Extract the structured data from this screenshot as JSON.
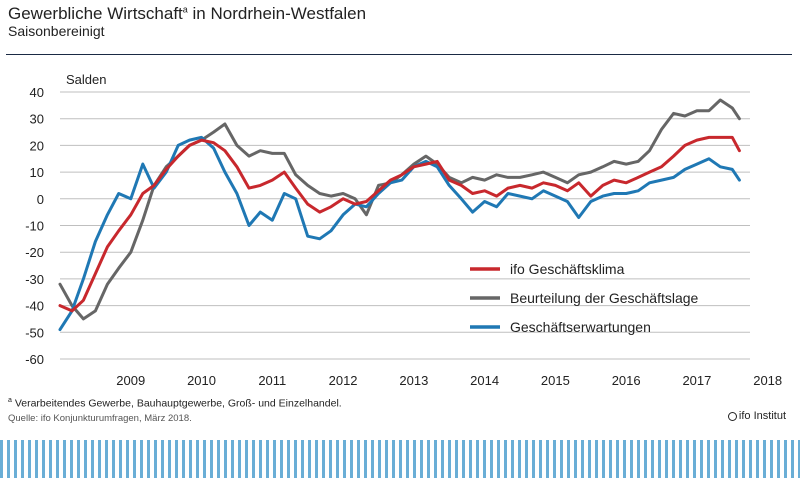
{
  "header": {
    "title": "Gewerbliche Wirtschaft",
    "title_sup": "a",
    "title_rest": " in Nordrhein-Westfalen",
    "subtitle": "Saisonbereinigt"
  },
  "footer": {
    "footnote_sup": "a",
    "footnote": " Verarbeitendes Gewerbe, Bauhauptgewerbe, Groß- und Einzelhandel.",
    "source": "Quelle: ifo Konjunkturumfragen, März 2018.",
    "brand": "ifo Institut"
  },
  "chart_data": {
    "type": "line",
    "ylabel": "Salden",
    "ylim": [
      -60,
      40
    ],
    "yticks": [
      40,
      30,
      20,
      10,
      0,
      -10,
      -20,
      -30,
      -40,
      -50,
      -60
    ],
    "xlim": [
      2008.5,
      2018.25
    ],
    "xticks": [
      "2009",
      "2010",
      "2011",
      "2012",
      "2013",
      "2014",
      "2015",
      "2016",
      "2017",
      "2018"
    ],
    "grid": true,
    "legend_position": "right",
    "colors": {
      "klima": "#c8282d",
      "lage": "#666666",
      "erwartungen": "#1f78b4"
    },
    "series": [
      {
        "name": "ifo Geschäftsklima",
        "key": "klima",
        "x": [
          2008.5,
          2008.67,
          2008.83,
          2009.0,
          2009.17,
          2009.33,
          2009.5,
          2009.67,
          2009.83,
          2010.0,
          2010.17,
          2010.33,
          2010.5,
          2010.67,
          2010.83,
          2011.0,
          2011.17,
          2011.33,
          2011.5,
          2011.67,
          2011.83,
          2012.0,
          2012.17,
          2012.33,
          2012.5,
          2012.67,
          2012.83,
          2013.0,
          2013.17,
          2013.33,
          2013.5,
          2013.67,
          2013.83,
          2014.0,
          2014.17,
          2014.33,
          2014.5,
          2014.67,
          2014.83,
          2015.0,
          2015.17,
          2015.33,
          2015.5,
          2015.67,
          2015.83,
          2016.0,
          2016.17,
          2016.33,
          2016.5,
          2016.67,
          2016.83,
          2017.0,
          2017.17,
          2017.33,
          2017.5,
          2017.67,
          2017.83,
          2018.0,
          2018.1
        ],
        "values": [
          -40,
          -42,
          -38,
          -28,
          -18,
          -12,
          -6,
          2,
          5,
          11,
          16,
          20,
          22,
          21,
          18,
          12,
          4,
          5,
          7,
          10,
          4,
          -2,
          -5,
          -3,
          0,
          -2,
          -1,
          3,
          7,
          9,
          12,
          13,
          14,
          7,
          5,
          2,
          3,
          1,
          4,
          5,
          4,
          6,
          5,
          3,
          6,
          1,
          5,
          7,
          6,
          8,
          10,
          12,
          16,
          20,
          22,
          23,
          23,
          23,
          18
        ]
      },
      {
        "name": "Beurteilung der Geschäftslage",
        "key": "lage",
        "x": [
          2008.5,
          2008.67,
          2008.83,
          2009.0,
          2009.17,
          2009.33,
          2009.5,
          2009.67,
          2009.83,
          2010.0,
          2010.17,
          2010.33,
          2010.5,
          2010.67,
          2010.83,
          2011.0,
          2011.17,
          2011.33,
          2011.5,
          2011.67,
          2011.83,
          2012.0,
          2012.17,
          2012.33,
          2012.5,
          2012.67,
          2012.83,
          2013.0,
          2013.17,
          2013.33,
          2013.5,
          2013.67,
          2013.83,
          2014.0,
          2014.17,
          2014.33,
          2014.5,
          2014.67,
          2014.83,
          2015.0,
          2015.17,
          2015.33,
          2015.5,
          2015.67,
          2015.83,
          2016.0,
          2016.17,
          2016.33,
          2016.5,
          2016.67,
          2016.83,
          2017.0,
          2017.17,
          2017.33,
          2017.5,
          2017.67,
          2017.83,
          2018.0,
          2018.1
        ],
        "values": [
          -32,
          -40,
          -45,
          -42,
          -32,
          -26,
          -20,
          -8,
          5,
          12,
          16,
          20,
          22,
          25,
          28,
          20,
          16,
          18,
          17,
          17,
          9,
          5,
          2,
          1,
          2,
          0,
          -6,
          5,
          6,
          9,
          13,
          16,
          13,
          8,
          6,
          8,
          7,
          9,
          8,
          8,
          9,
          10,
          8,
          6,
          9,
          10,
          12,
          14,
          13,
          14,
          18,
          26,
          32,
          31,
          33,
          33,
          37,
          34,
          30
        ]
      },
      {
        "name": "Geschäftserwartungen",
        "key": "erwartungen",
        "x": [
          2008.5,
          2008.67,
          2008.83,
          2009.0,
          2009.17,
          2009.33,
          2009.5,
          2009.67,
          2009.83,
          2010.0,
          2010.17,
          2010.33,
          2010.5,
          2010.67,
          2010.83,
          2011.0,
          2011.17,
          2011.33,
          2011.5,
          2011.67,
          2011.83,
          2012.0,
          2012.17,
          2012.33,
          2012.5,
          2012.67,
          2012.83,
          2013.0,
          2013.17,
          2013.33,
          2013.5,
          2013.67,
          2013.83,
          2014.0,
          2014.17,
          2014.33,
          2014.5,
          2014.67,
          2014.83,
          2015.0,
          2015.17,
          2015.33,
          2015.5,
          2015.67,
          2015.83,
          2016.0,
          2016.17,
          2016.33,
          2016.5,
          2016.67,
          2016.83,
          2017.0,
          2017.17,
          2017.33,
          2017.5,
          2017.67,
          2017.83,
          2018.0,
          2018.1
        ],
        "values": [
          -49,
          -42,
          -30,
          -16,
          -6,
          2,
          0,
          13,
          4,
          10,
          20,
          22,
          23,
          19,
          10,
          2,
          -10,
          -5,
          -8,
          2,
          0,
          -14,
          -15,
          -12,
          -6,
          -2,
          -3,
          2,
          6,
          7,
          12,
          14,
          12,
          5,
          0,
          -5,
          -1,
          -3,
          2,
          1,
          0,
          3,
          1,
          -1,
          -7,
          -1,
          1,
          2,
          2,
          3,
          6,
          7,
          8,
          11,
          13,
          15,
          12,
          11,
          7
        ]
      }
    ]
  }
}
